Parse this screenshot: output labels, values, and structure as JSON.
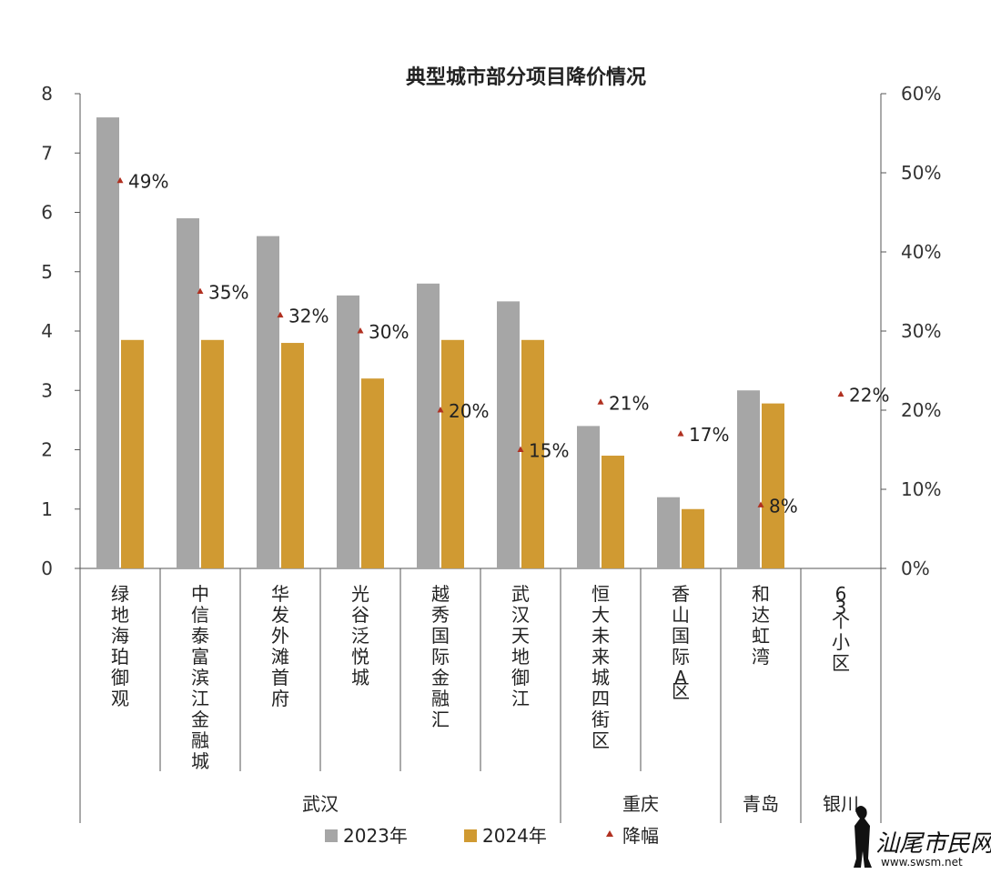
{
  "chart_data": {
    "type": "bar",
    "title": "典型城市部分项目降价情况",
    "categories": [
      "绿地海珀御观",
      "中信泰富滨江金融城",
      "华发外滩首府",
      "光谷泛悦城",
      "越秀国际金融汇",
      "武汉天地御江",
      "恒大未来城四街区",
      "香山国际A区",
      "和达虹湾",
      "63个小区"
    ],
    "groups": [
      {
        "name": "武汉",
        "count": 6
      },
      {
        "name": "重庆",
        "count": 2
      },
      {
        "name": "青岛",
        "count": 1
      },
      {
        "name": "银川",
        "count": 1
      }
    ],
    "series": [
      {
        "name": "2023年",
        "type": "bar",
        "axis": "left",
        "color": "#a6a6a6",
        "values": [
          7.6,
          5.9,
          5.6,
          4.6,
          4.8,
          4.5,
          2.4,
          1.2,
          3.0,
          null
        ]
      },
      {
        "name": "2024年",
        "type": "bar",
        "axis": "left",
        "color": "#d09a32",
        "values": [
          3.85,
          3.85,
          3.8,
          3.2,
          3.85,
          3.85,
          1.9,
          1.0,
          2.78,
          null
        ]
      },
      {
        "name": "降幅",
        "type": "marker",
        "axis": "right",
        "color": "#b03020",
        "values": [
          49,
          35,
          32,
          30,
          20,
          15,
          21,
          17,
          8,
          22
        ],
        "labels": [
          "49%",
          "35%",
          "32%",
          "30%",
          "20%",
          "15%",
          "21%",
          "17%",
          "8%",
          "22%"
        ]
      }
    ],
    "y_left": {
      "min": 0,
      "max": 8,
      "ticks": [
        "0",
        "1",
        "2",
        "3",
        "4",
        "5",
        "6",
        "7",
        "8"
      ]
    },
    "y_right": {
      "min": 0,
      "max": 60,
      "ticks": [
        "0%",
        "10%",
        "20%",
        "30%",
        "40%",
        "50%",
        "60%"
      ]
    },
    "legend": {
      "placement": "bottom",
      "items": [
        "2023年",
        "2024年",
        "降幅"
      ]
    },
    "grid": false
  },
  "watermark": {
    "brand": "汕尾市民网",
    "url": "www.swsm.net"
  }
}
